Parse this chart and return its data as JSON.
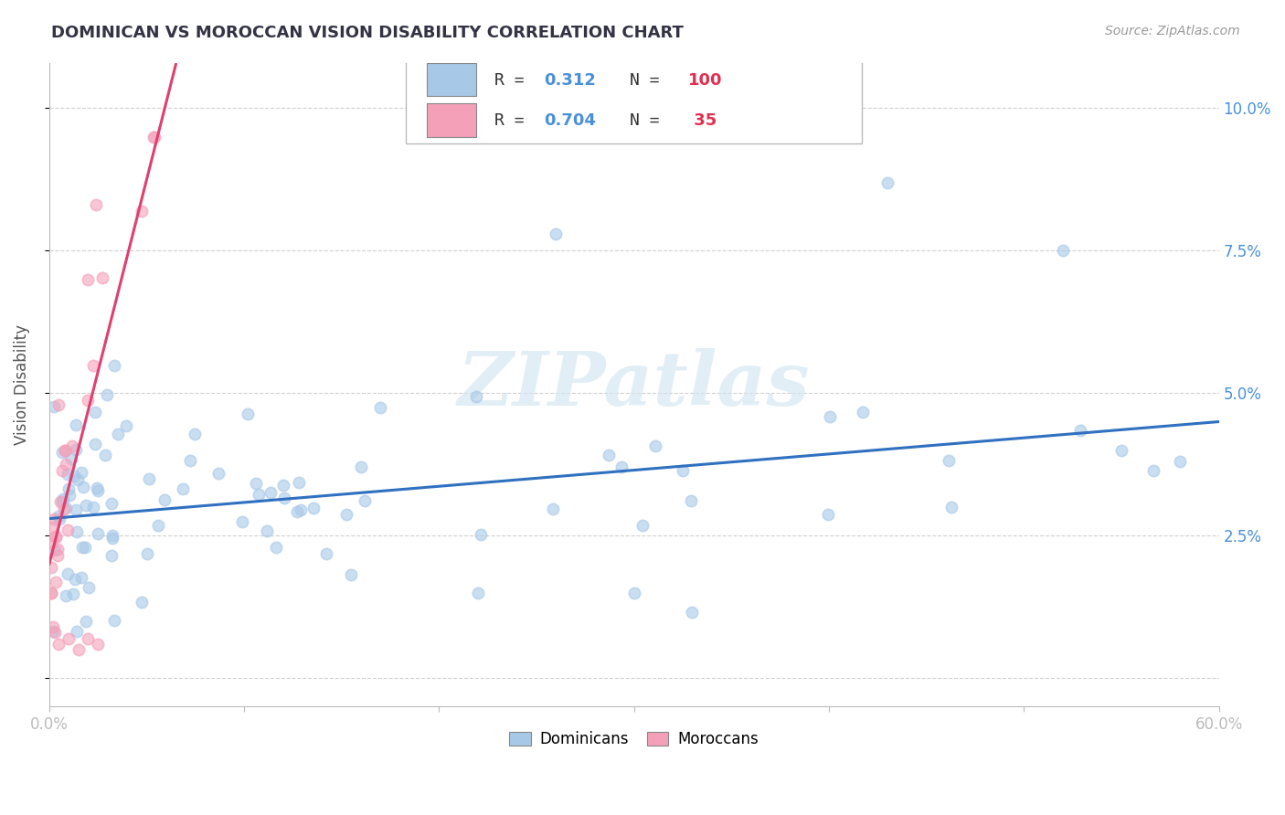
{
  "title": "DOMINICAN VS MOROCCAN VISION DISABILITY CORRELATION CHART",
  "source": "Source: ZipAtlas.com",
  "ylabel": "Vision Disability",
  "dominican_color": "#a8c8e8",
  "moroccan_color": "#f4a0b8",
  "dominican_line_color": "#3070c0",
  "moroccan_line_color": "#e04070",
  "moroccan_line_dash_color": "#e8a0b8",
  "xlim": [
    0.0,
    0.6
  ],
  "ylim": [
    -0.005,
    0.108
  ],
  "ytick_vals": [
    0.0,
    0.025,
    0.05,
    0.075,
    0.1
  ],
  "ytick_labels": [
    "",
    "2.5%",
    "5.0%",
    "7.5%",
    "10.0%"
  ],
  "watermark": "ZIPatlas",
  "bg_color": "#ffffff",
  "grid_color": "#cccccc",
  "legend_r1": "0.312",
  "legend_n1": "100",
  "legend_r2": "0.704",
  "legend_n2": "35"
}
